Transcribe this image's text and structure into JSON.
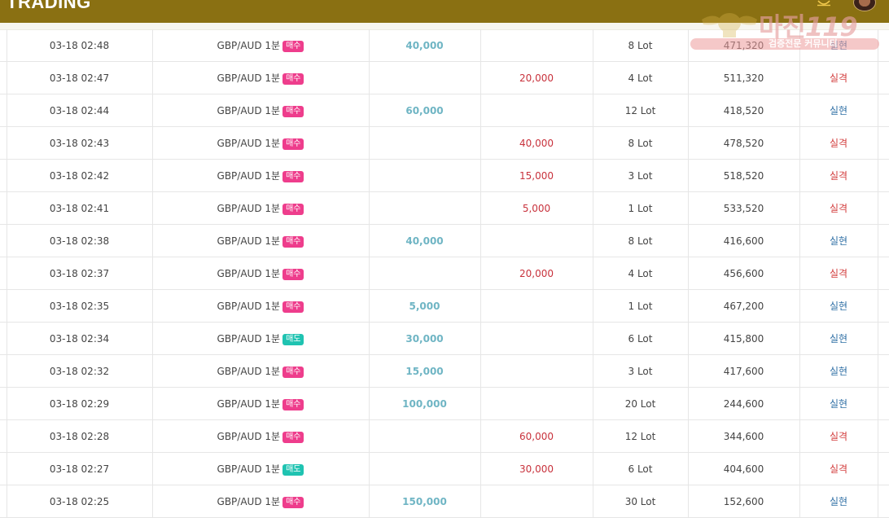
{
  "header": {
    "title": "TRADING"
  },
  "watermark": {
    "brand": "마진",
    "brand_num": "119",
    "tagline": "검증전문 커뮤니티"
  },
  "colors": {
    "topbar": "#8a7012",
    "buy_badge": "#ee3d8c",
    "sell_badge": "#1fc3b1",
    "profit": "#6fb5c4",
    "loss": "#c8323c",
    "result_win": "#2f6fa5",
    "result_lose": "#d23c3c"
  },
  "trades": [
    {
      "time": "03-18 02:48",
      "symbol": "GBP/AUD 1분",
      "side": "매수",
      "side_type": "buy",
      "profit": "40,000",
      "loss": "",
      "lot": "8 Lot",
      "balance": "471,320",
      "result": "실현",
      "result_type": "win"
    },
    {
      "time": "03-18 02:47",
      "symbol": "GBP/AUD 1분",
      "side": "매수",
      "side_type": "buy",
      "profit": "",
      "loss": "20,000",
      "lot": "4 Lot",
      "balance": "511,320",
      "result": "실격",
      "result_type": "lose"
    },
    {
      "time": "03-18 02:44",
      "symbol": "GBP/AUD 1분",
      "side": "매수",
      "side_type": "buy",
      "profit": "60,000",
      "loss": "",
      "lot": "12 Lot",
      "balance": "418,520",
      "result": "실현",
      "result_type": "win"
    },
    {
      "time": "03-18 02:43",
      "symbol": "GBP/AUD 1분",
      "side": "매수",
      "side_type": "buy",
      "profit": "",
      "loss": "40,000",
      "lot": "8 Lot",
      "balance": "478,520",
      "result": "실격",
      "result_type": "lose"
    },
    {
      "time": "03-18 02:42",
      "symbol": "GBP/AUD 1분",
      "side": "매수",
      "side_type": "buy",
      "profit": "",
      "loss": "15,000",
      "lot": "3 Lot",
      "balance": "518,520",
      "result": "실격",
      "result_type": "lose"
    },
    {
      "time": "03-18 02:41",
      "symbol": "GBP/AUD 1분",
      "side": "매수",
      "side_type": "buy",
      "profit": "",
      "loss": "5,000",
      "lot": "1 Lot",
      "balance": "533,520",
      "result": "실격",
      "result_type": "lose"
    },
    {
      "time": "03-18 02:38",
      "symbol": "GBP/AUD 1분",
      "side": "매수",
      "side_type": "buy",
      "profit": "40,000",
      "loss": "",
      "lot": "8 Lot",
      "balance": "416,600",
      "result": "실현",
      "result_type": "win"
    },
    {
      "time": "03-18 02:37",
      "symbol": "GBP/AUD 1분",
      "side": "매수",
      "side_type": "buy",
      "profit": "",
      "loss": "20,000",
      "lot": "4 Lot",
      "balance": "456,600",
      "result": "실격",
      "result_type": "lose"
    },
    {
      "time": "03-18 02:35",
      "symbol": "GBP/AUD 1분",
      "side": "매수",
      "side_type": "buy",
      "profit": "5,000",
      "loss": "",
      "lot": "1 Lot",
      "balance": "467,200",
      "result": "실현",
      "result_type": "win"
    },
    {
      "time": "03-18 02:34",
      "symbol": "GBP/AUD 1분",
      "side": "매도",
      "side_type": "sell",
      "profit": "30,000",
      "loss": "",
      "lot": "6 Lot",
      "balance": "415,800",
      "result": "실현",
      "result_type": "win"
    },
    {
      "time": "03-18 02:32",
      "symbol": "GBP/AUD 1분",
      "side": "매수",
      "side_type": "buy",
      "profit": "15,000",
      "loss": "",
      "lot": "3 Lot",
      "balance": "417,600",
      "result": "실현",
      "result_type": "win"
    },
    {
      "time": "03-18 02:29",
      "symbol": "GBP/AUD 1분",
      "side": "매수",
      "side_type": "buy",
      "profit": "100,000",
      "loss": "",
      "lot": "20 Lot",
      "balance": "244,600",
      "result": "실현",
      "result_type": "win"
    },
    {
      "time": "03-18 02:28",
      "symbol": "GBP/AUD 1분",
      "side": "매수",
      "side_type": "buy",
      "profit": "",
      "loss": "60,000",
      "lot": "12 Lot",
      "balance": "344,600",
      "result": "실격",
      "result_type": "lose"
    },
    {
      "time": "03-18 02:27",
      "symbol": "GBP/AUD 1분",
      "side": "매도",
      "side_type": "sell",
      "profit": "",
      "loss": "30,000",
      "lot": "6 Lot",
      "balance": "404,600",
      "result": "실격",
      "result_type": "lose"
    },
    {
      "time": "03-18 02:25",
      "symbol": "GBP/AUD 1분",
      "side": "매수",
      "side_type": "buy",
      "profit": "150,000",
      "loss": "",
      "lot": "30 Lot",
      "balance": "152,600",
      "result": "실현",
      "result_type": "win"
    }
  ]
}
